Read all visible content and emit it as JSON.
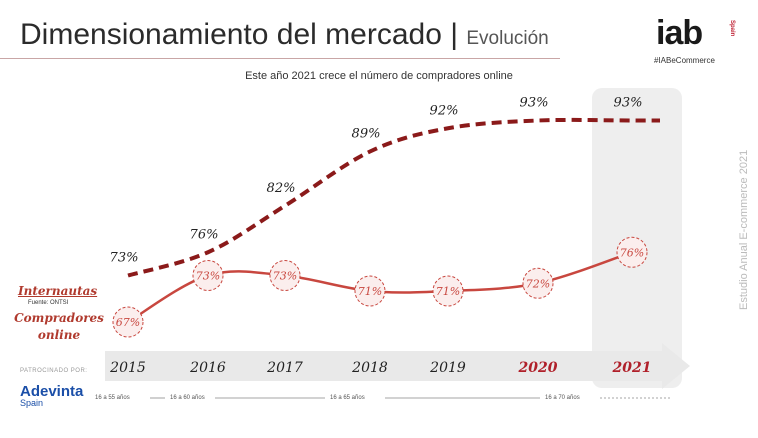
{
  "header": {
    "title": "Dimensionamiento del mercado",
    "title_separator": "|",
    "title_section": "Evolución",
    "subtitle": "Este año 2021 crece el número de compradores online"
  },
  "brand": {
    "logo_text": "iab",
    "logo_country": "Spain",
    "hashtag": "#IABeCommerce",
    "accent_color": "#c0283a"
  },
  "side_text": "Estudio Anual E-commerce 2021",
  "labels": {
    "internautas": "Internautas",
    "source": "Fuente: ONTSI",
    "compradores": "Compradores online"
  },
  "sponsor": {
    "label": "PATROCINADO POR:",
    "name": "Adevinta",
    "country": "Spain"
  },
  "age_ranges": [
    "16 a 55 años",
    "16 a 60 años",
    "16 a 65 años",
    "16 a 70 años"
  ],
  "chart_data": {
    "type": "line",
    "categories": [
      "2015",
      "2016",
      "2017",
      "2018",
      "2019",
      "2020",
      "2021"
    ],
    "highlight_categories": [
      "2020",
      "2021"
    ],
    "series": [
      {
        "name": "Internautas",
        "values": [
          73,
          76,
          82,
          89,
          92,
          93,
          93
        ],
        "color": "#8b1a1a",
        "style": "dashed"
      },
      {
        "name": "Compradores online",
        "values": [
          67,
          73,
          73,
          71,
          71,
          72,
          76
        ],
        "color": "#c8473f",
        "style": "solid"
      }
    ],
    "value_format": "{v}%",
    "grid": false,
    "axis_color": "#e8e8e8",
    "highlight_color": "#eeeeee"
  }
}
